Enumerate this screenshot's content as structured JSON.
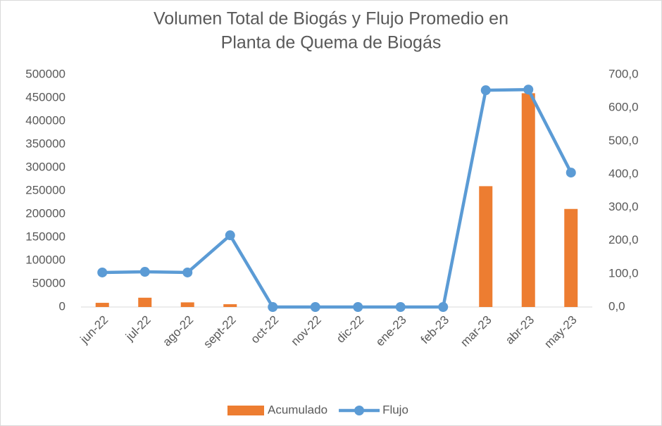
{
  "chart_data": {
    "type": "combo",
    "title": [
      "Volumen Total de Biogás y Flujo Promedio en",
      "Planta de Quema de Biogás"
    ],
    "categories": [
      "jun-22",
      "jul-22",
      "ago-22",
      "sept-22",
      "oct-22",
      "nov-22",
      "dic-22",
      "ene-23",
      "feb-23",
      "mar-23",
      "abr-23",
      "may-23"
    ],
    "series": [
      {
        "name": "Acumulado",
        "type": "bar",
        "color": "#ed7d31",
        "values": [
          9000,
          20000,
          10000,
          6000,
          0,
          0,
          0,
          0,
          0,
          260000,
          460000,
          211000
        ]
      },
      {
        "name": "Flujo",
        "type": "line",
        "axis": "y2",
        "color": "#5b9bd5",
        "values": [
          104,
          106,
          104,
          216,
          0,
          0,
          0,
          0,
          0,
          653,
          655,
          405
        ]
      }
    ],
    "ylim": [
      0,
      500000
    ],
    "yticks": [
      0,
      50000,
      100000,
      150000,
      200000,
      250000,
      300000,
      350000,
      400000,
      450000,
      500000
    ],
    "y2lim": [
      0,
      700
    ],
    "y2ticks": [
      {
        "value": 0,
        "label": "0,0"
      },
      {
        "value": 100,
        "label": "100,0"
      },
      {
        "value": 200,
        "label": "200,0"
      },
      {
        "value": 300,
        "label": "300,0"
      },
      {
        "value": 400,
        "label": "400,0"
      },
      {
        "value": 500,
        "label": "500,0"
      },
      {
        "value": 600,
        "label": "600,0"
      },
      {
        "value": 700,
        "label": "700,0"
      }
    ],
    "legend": "bottom",
    "grid": false
  }
}
